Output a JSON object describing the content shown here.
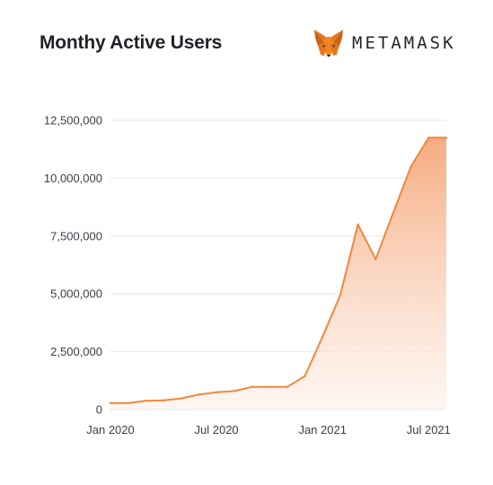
{
  "header": {
    "title": "Monthy Active Users",
    "brand_name": "METAMASK",
    "brand_logo_icon": "metamask-fox-icon"
  },
  "colors": {
    "line": "#f0883e",
    "fill_top": "#f6a77a",
    "fill_bottom": "#fdf0e8",
    "grid": "#e6e6e6",
    "text": "#1f2328"
  },
  "chart_data": {
    "type": "area",
    "title": "Monthy Active Users",
    "xlabel": "",
    "ylabel": "",
    "ylim": [
      0,
      12500000
    ],
    "yticks": [
      0,
      2500000,
      5000000,
      7500000,
      10000000,
      12500000
    ],
    "ytick_labels": [
      "0",
      "2,500,000",
      "5,000,000",
      "7,500,000",
      "10,000,000",
      "12,500,000"
    ],
    "xticks": [
      "2020-01",
      "2020-07",
      "2021-01",
      "2021-07"
    ],
    "xtick_labels": [
      "Jan 2020",
      "Jul 2020",
      "Jan 2021",
      "Jul 2021"
    ],
    "x_range": [
      "2020-01",
      "2021-08"
    ],
    "grid": true,
    "series": [
      {
        "x": [
          "2020-01",
          "2020-02",
          "2020-03",
          "2020-04",
          "2020-05",
          "2020-06",
          "2020-07",
          "2020-08",
          "2020-09",
          "2020-10",
          "2020-11",
          "2020-12",
          "2021-01",
          "2021-02",
          "2021-03",
          "2021-04",
          "2021-05",
          "2021-06",
          "2021-07",
          "2021-08"
        ],
        "values": [
          280000,
          280000,
          380000,
          400000,
          480000,
          650000,
          750000,
          800000,
          980000,
          980000,
          980000,
          1450000,
          3150000,
          4950000,
          8000000,
          6500000,
          8500000,
          10500000,
          11750000,
          11750000
        ]
      }
    ]
  }
}
